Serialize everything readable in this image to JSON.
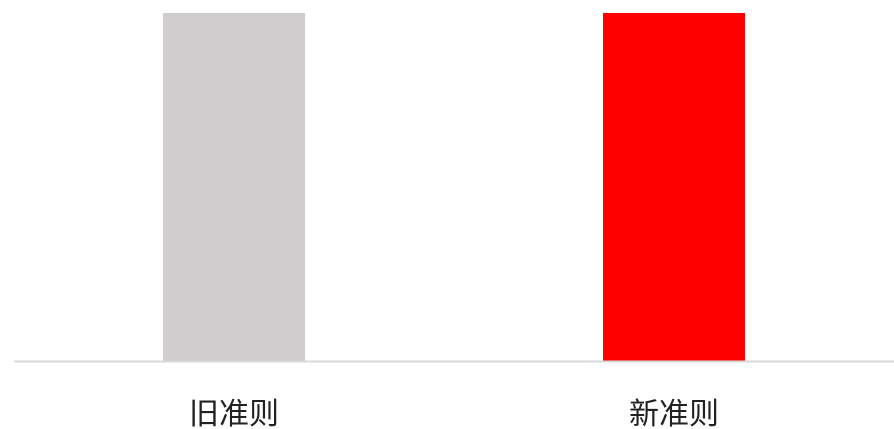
{
  "chart_data": {
    "type": "bar",
    "categories": [
      "旧准则",
      "新准则"
    ],
    "values": [
      1,
      1
    ],
    "colors": [
      "#cfcdcd",
      "#ff0000"
    ],
    "title": "",
    "xlabel": "",
    "ylabel": "",
    "ylim": [
      0,
      1
    ],
    "grid": false,
    "legend": "none",
    "axis_color": "#d9d9d9"
  }
}
